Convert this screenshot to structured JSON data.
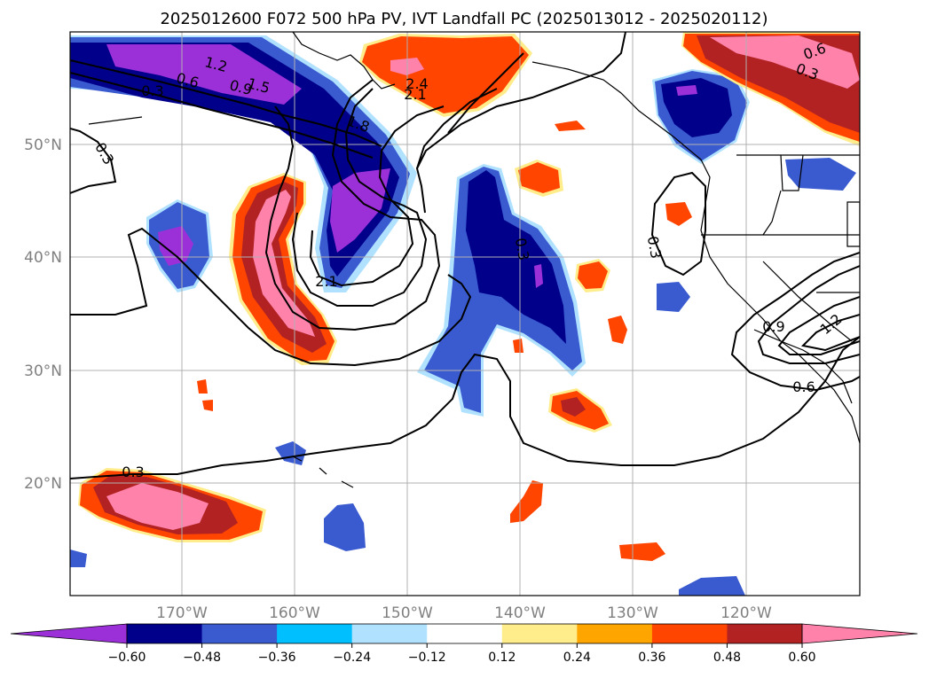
{
  "title": "2025012600 F072 500 hPa PV, IVT Landfall PC (2025013012 - 2025020112)",
  "lat_labels": [
    "50°N",
    "40°N",
    "30°N",
    "20°N"
  ],
  "lon_labels": [
    "170°W",
    "160°W",
    "150°W",
    "140°W",
    "130°W",
    "120°W"
  ],
  "colorbar": {
    "ticks": [
      "−0.60",
      "−0.48",
      "−0.36",
      "−0.24",
      "−0.12",
      "0.12",
      "0.24",
      "0.36",
      "0.48",
      "0.60"
    ],
    "colors": [
      "#9b30d9",
      "#00008b",
      "#3a5bd0",
      "#00bfff",
      "#b0e2ff",
      "#ffffff",
      "#ffec8b",
      "#ffa500",
      "#ff4500",
      "#b22222",
      "#ff82ab"
    ]
  },
  "contour_labels": [
    "1.2",
    "0.6",
    "0.9",
    "1.5",
    "0.3",
    "0.3",
    "1.8",
    "2.1",
    "2.4",
    "2.1",
    "0.3",
    "0.3",
    "0.6",
    "0.3",
    "0.9",
    "1.2",
    "0.6",
    "0.3"
  ],
  "colors": {
    "grid": "#b0b0b0",
    "contour": "#000000",
    "coast": "#000000"
  }
}
